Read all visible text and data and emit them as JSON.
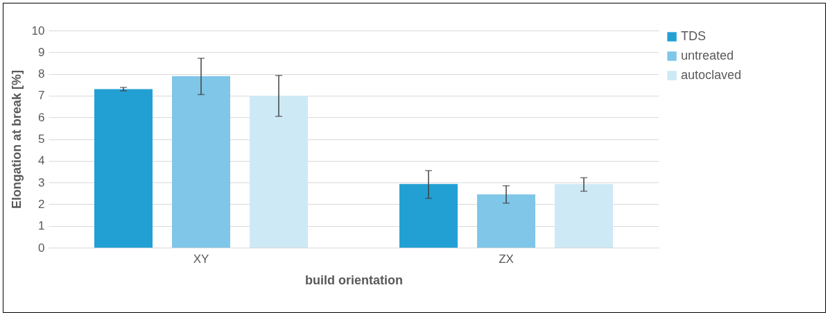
{
  "chart_data": {
    "type": "bar",
    "xlabel": "build orientation",
    "ylabel": "Elongation at break [%]",
    "categories": [
      "XY",
      "ZX"
    ],
    "series": [
      {
        "name": "TDS",
        "color": "#22a0d4",
        "values": [
          7.3,
          2.93
        ],
        "errors": [
          [
            7.22,
            7.38
          ],
          [
            2.27,
            3.55
          ]
        ]
      },
      {
        "name": "untreated",
        "color": "#7fc6e8",
        "values": [
          7.9,
          2.45
        ],
        "errors": [
          [
            7.05,
            8.72
          ],
          [
            2.05,
            2.85
          ]
        ]
      },
      {
        "name": "autoclaved",
        "color": "#cde9f5",
        "values": [
          7.0,
          2.93
        ],
        "errors": [
          [
            6.05,
            7.93
          ],
          [
            2.6,
            3.22
          ]
        ]
      }
    ],
    "ylim": [
      0,
      10
    ],
    "yticks": [
      0,
      1,
      2,
      3,
      4,
      5,
      6,
      7,
      8,
      9,
      10
    ],
    "grid": "y",
    "legend": "right"
  }
}
